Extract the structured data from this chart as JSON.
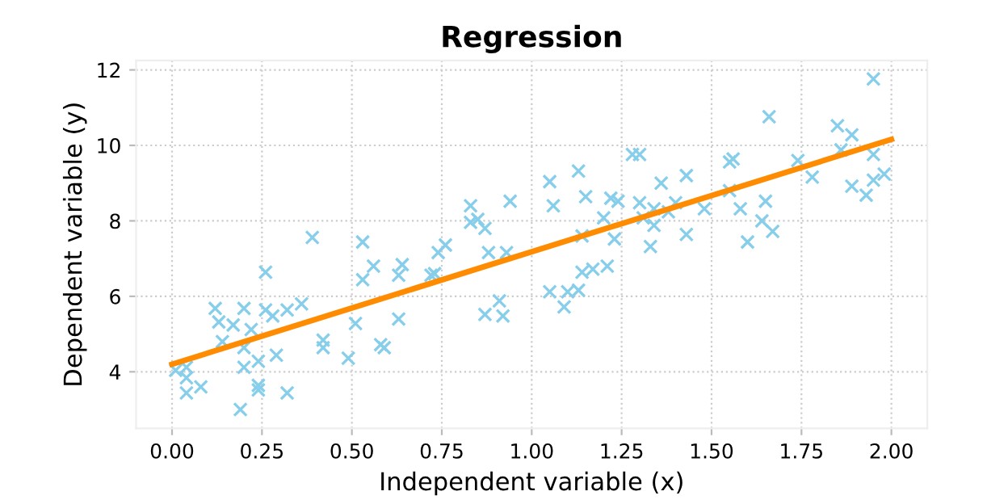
{
  "chart_data": {
    "type": "scatter",
    "title": "Regression",
    "xlabel": "Independent variable (x)",
    "ylabel": "Dependent variable (y)",
    "xlim": [
      -0.1,
      2.1
    ],
    "ylim": [
      2.5,
      12.25
    ],
    "xticks": [
      {
        "value": 0,
        "label": "0.00"
      },
      {
        "value": 0.25,
        "label": "0.25"
      },
      {
        "value": 0.5,
        "label": "0.50"
      },
      {
        "value": 0.75,
        "label": "0.75"
      },
      {
        "value": 1,
        "label": "1.00"
      },
      {
        "value": 1.25,
        "label": "1.25"
      },
      {
        "value": 1.5,
        "label": "1.50"
      },
      {
        "value": 1.75,
        "label": "1.75"
      },
      {
        "value": 2,
        "label": "2.00"
      }
    ],
    "yticks": [
      4,
      6,
      8,
      10,
      12
    ],
    "grid": true,
    "legend": false,
    "series": [
      {
        "color": "#87ceeb",
        "marker": "cross",
        "x": [
          0.01,
          0.04,
          0.04,
          0.04,
          0.08,
          0.12,
          0.13,
          0.14,
          0.19,
          0.2,
          0.2,
          0.17,
          0.2,
          0.22,
          0.24,
          0.24,
          0.24,
          0.26,
          0.26,
          0.28,
          0.29,
          0.32,
          0.32,
          0.36,
          0.39,
          0.42,
          0.42,
          0.49,
          0.51,
          0.53,
          0.53,
          0.56,
          0.58,
          0.59,
          0.63,
          0.63,
          0.64,
          0.72,
          0.73,
          0.74,
          0.76,
          0.83,
          0.83,
          0.85,
          0.87,
          0.88,
          0.87,
          0.91,
          0.92,
          0.93,
          0.94,
          1.05,
          1.05,
          1.06,
          1.09,
          1.1,
          1.13,
          1.14,
          1.13,
          1.14,
          1.15,
          1.17,
          1.21,
          1.2,
          1.22,
          1.23,
          1.24,
          1.28,
          1.3,
          1.3,
          1.31,
          1.33,
          1.34,
          1.34,
          1.36,
          1.38,
          1.4,
          1.43,
          1.43,
          1.48,
          1.55,
          1.56,
          1.55,
          1.58,
          1.6,
          1.64,
          1.65,
          1.66,
          1.67,
          1.74,
          1.78,
          1.85,
          1.86,
          1.89,
          1.89,
          1.93,
          1.95,
          1.95,
          1.95,
          1.98
        ],
        "values": [
          4.04,
          4.12,
          3.84,
          3.44,
          3.6,
          5.68,
          5.32,
          4.8,
          3.0,
          4.12,
          5.68,
          5.24,
          4.64,
          5.12,
          4.28,
          3.64,
          3.52,
          6.64,
          5.64,
          5.48,
          4.44,
          3.44,
          5.64,
          5.8,
          7.56,
          4.84,
          4.64,
          4.36,
          5.28,
          7.44,
          6.44,
          6.8,
          4.72,
          4.64,
          5.4,
          6.56,
          6.84,
          6.56,
          6.6,
          7.16,
          7.36,
          8.4,
          7.96,
          8.04,
          7.8,
          7.16,
          5.52,
          5.88,
          5.48,
          7.16,
          8.52,
          9.04,
          6.12,
          8.4,
          5.72,
          6.12,
          9.32,
          7.6,
          6.16,
          6.64,
          8.64,
          6.72,
          6.8,
          8.08,
          8.6,
          7.52,
          8.52,
          9.76,
          9.76,
          8.48,
          8.08,
          7.32,
          8.32,
          7.88,
          9.0,
          8.24,
          8.48,
          9.2,
          7.64,
          8.32,
          9.56,
          9.64,
          8.8,
          8.32,
          7.44,
          8.0,
          8.52,
          10.76,
          7.72,
          9.6,
          9.16,
          10.52,
          9.88,
          10.28,
          8.92,
          8.68,
          11.76,
          9.76,
          9.08,
          9.24
        ]
      },
      {
        "type": "line",
        "color": "#ff8c00",
        "line_style": "solid",
        "x": [
          0,
          2
        ],
        "values": [
          4.2,
          10.16
        ]
      }
    ]
  }
}
